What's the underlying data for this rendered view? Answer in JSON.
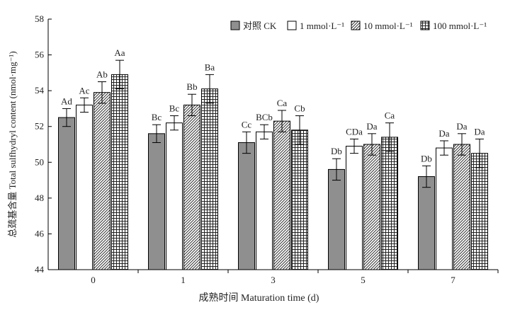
{
  "chart_data": {
    "type": "bar",
    "xlabel": "成熟时间 Maturation time (d)",
    "ylabel": "总巯基含量 Total sulfhydryl content (nmol·mg⁻¹)",
    "ylim": [
      44,
      58
    ],
    "yticks": [
      44,
      46,
      48,
      50,
      52,
      54,
      56,
      58
    ],
    "categories": [
      "0",
      "1",
      "3",
      "5",
      "7"
    ],
    "legend_position": "top-right",
    "grid": false,
    "series": [
      {
        "name": "对照 CK",
        "pattern": "solid-gray",
        "color": "#8f8f8f",
        "values": [
          52.5,
          51.6,
          51.1,
          49.6,
          49.2
        ],
        "errors": [
          0.5,
          0.5,
          0.6,
          0.6,
          0.6
        ],
        "labels": [
          "Ad",
          "Bc",
          "Cc",
          "Db",
          "Db"
        ]
      },
      {
        "name": "1 mmol·L⁻¹",
        "pattern": "white",
        "color": "#ffffff",
        "values": [
          53.2,
          52.2,
          51.7,
          50.9,
          50.8
        ],
        "errors": [
          0.4,
          0.4,
          0.4,
          0.4,
          0.4
        ],
        "labels": [
          "Ac",
          "Bc",
          "BCb",
          "CDa",
          "Da"
        ]
      },
      {
        "name": "10 mmol·L⁻¹",
        "pattern": "diagonal-hatch",
        "color": "#ffffff",
        "values": [
          53.9,
          53.2,
          52.3,
          51.0,
          51.0
        ],
        "errors": [
          0.6,
          0.6,
          0.6,
          0.6,
          0.6
        ],
        "labels": [
          "Ab",
          "Bb",
          "Ca",
          "Da",
          "Da"
        ]
      },
      {
        "name": "100 mmol·L⁻¹",
        "pattern": "grid-hatch",
        "color": "#ffffff",
        "values": [
          54.9,
          54.1,
          51.8,
          51.4,
          50.5
        ],
        "errors": [
          0.8,
          0.8,
          0.8,
          0.8,
          0.8
        ],
        "labels": [
          "Aa",
          "Ba",
          "Cb",
          "Ca",
          "Da"
        ]
      }
    ]
  }
}
